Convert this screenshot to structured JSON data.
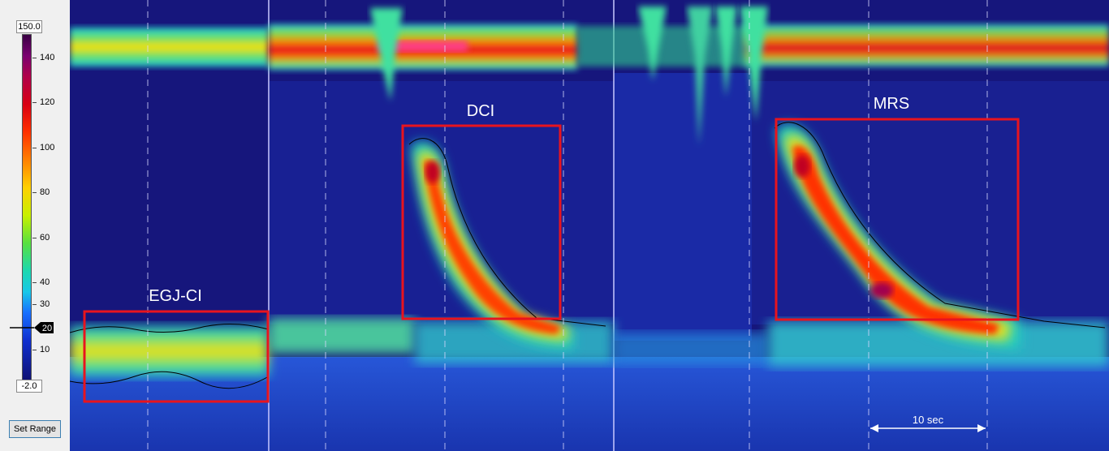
{
  "colorbar": {
    "max_label": "150.0",
    "min_label": "-2.0",
    "marker_label": "20",
    "ticks": [
      "140",
      "120",
      "100",
      "80",
      "60",
      "40",
      "30",
      "10"
    ],
    "set_range_label": "Set Range"
  },
  "annotations": {
    "egj_label": "EGJ-CI",
    "dci_label": "DCI",
    "mrs_label": "MRS",
    "time_scale_label": "10 sec"
  },
  "colors": {
    "box": "#e8141e",
    "background": "#15157a",
    "contour": "#000000"
  },
  "chart_data": {
    "type": "heatmap",
    "title": "",
    "colorscale_range": [
      -2.0,
      150.0
    ],
    "isobaric_contour": 20,
    "regions": [
      "EGJ-CI",
      "DCI",
      "MRS"
    ],
    "time_scale": "10 sec"
  }
}
